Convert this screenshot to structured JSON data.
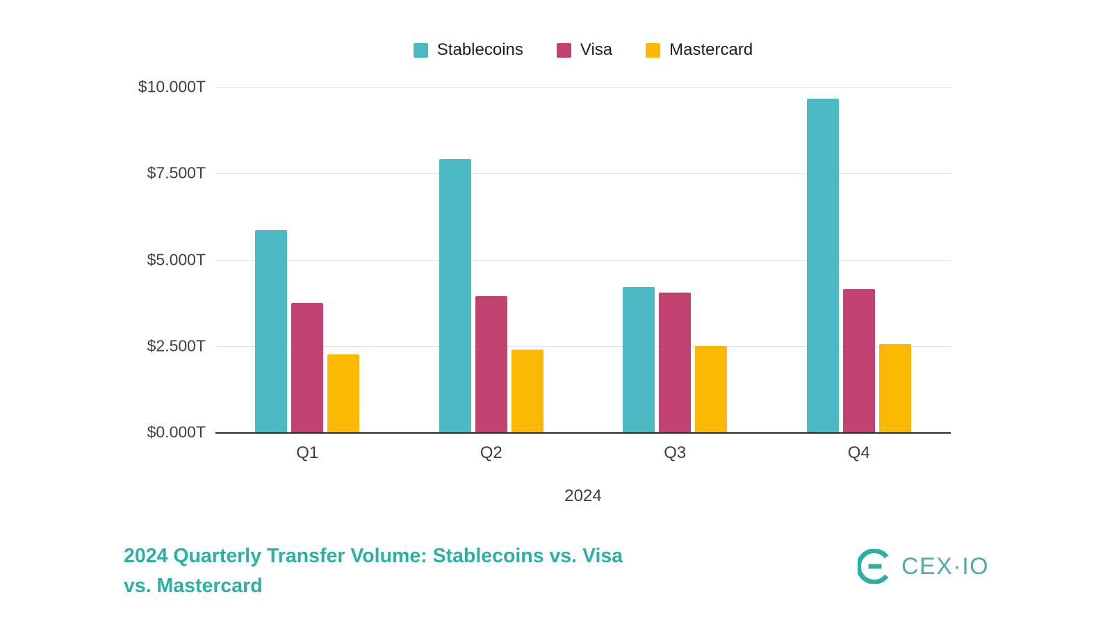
{
  "chart_data": {
    "type": "bar",
    "title": "2024 Quarterly Transfer Volume: Stablecoins vs. Visa vs. Mastercard",
    "categories": [
      "Q1",
      "Q2",
      "Q3",
      "Q4"
    ],
    "series": [
      {
        "name": "Stablecoins",
        "color": "#4bbac5",
        "values": [
          5.85,
          7.9,
          4.2,
          9.65
        ]
      },
      {
        "name": "Visa",
        "color": "#c2436f",
        "values": [
          3.75,
          3.95,
          4.05,
          4.15
        ]
      },
      {
        "name": "Mastercard",
        "color": "#fbb903",
        "values": [
          2.25,
          2.4,
          2.5,
          2.55
        ]
      }
    ],
    "xlabel": "2024",
    "ylabel": "",
    "ylim": [
      0,
      10
    ],
    "y_ticks": [
      "$10.000T",
      "$7.500T",
      "$5.000T",
      "$2.500T",
      "$0.000T"
    ],
    "grid": true,
    "legend_position": "top"
  },
  "footer": {
    "title_line1": "2024 Quarterly Transfer Volume: Stablecoins vs. Visa",
    "title_line2": "vs. Mastercard"
  },
  "logo": {
    "text": "CEX·IO",
    "color": "#2cb0a4"
  }
}
